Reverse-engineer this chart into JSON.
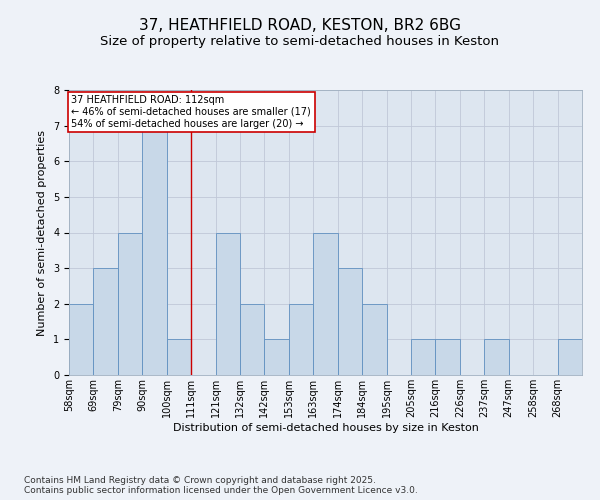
{
  "title_line1": "37, HEATHFIELD ROAD, KESTON, BR2 6BG",
  "title_line2": "Size of property relative to semi-detached houses in Keston",
  "xlabel": "Distribution of semi-detached houses by size in Keston",
  "ylabel": "Number of semi-detached properties",
  "bins": [
    "58sqm",
    "69sqm",
    "79sqm",
    "90sqm",
    "100sqm",
    "111sqm",
    "121sqm",
    "132sqm",
    "142sqm",
    "153sqm",
    "163sqm",
    "174sqm",
    "184sqm",
    "195sqm",
    "205sqm",
    "216sqm",
    "226sqm",
    "237sqm",
    "247sqm",
    "258sqm",
    "268sqm"
  ],
  "bin_edges": [
    58,
    69,
    79,
    90,
    100,
    111,
    121,
    132,
    142,
    153,
    163,
    174,
    184,
    195,
    205,
    216,
    226,
    237,
    247,
    258,
    268,
    278
  ],
  "values": [
    2,
    3,
    4,
    7,
    1,
    0,
    4,
    2,
    1,
    2,
    4,
    3,
    2,
    0,
    1,
    1,
    0,
    1,
    0,
    0,
    1
  ],
  "bar_color": "#c8d8e8",
  "bar_edge_color": "#6090c0",
  "red_line_x": 111,
  "annotation_text_line1": "37 HEATHFIELD ROAD: 112sqm",
  "annotation_text_line2": "← 46% of semi-detached houses are smaller (17)",
  "annotation_text_line3": "54% of semi-detached houses are larger (20) →",
  "annotation_box_color": "#ffffff",
  "annotation_box_edge": "#cc0000",
  "red_line_color": "#cc0000",
  "grid_color": "#c0c8d8",
  "background_color": "#dde6f0",
  "fig_background": "#eef2f8",
  "ylim": [
    0,
    8
  ],
  "yticks": [
    0,
    1,
    2,
    3,
    4,
    5,
    6,
    7,
    8
  ],
  "footer_line1": "Contains HM Land Registry data © Crown copyright and database right 2025.",
  "footer_line2": "Contains public sector information licensed under the Open Government Licence v3.0.",
  "title_fontsize": 11,
  "subtitle_fontsize": 9.5,
  "label_fontsize": 8,
  "tick_fontsize": 7,
  "annotation_fontsize": 7,
  "footer_fontsize": 6.5
}
